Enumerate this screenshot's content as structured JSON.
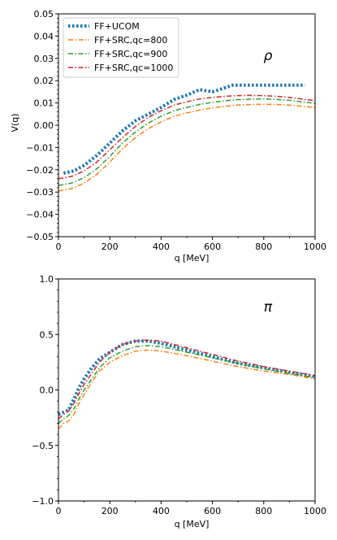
{
  "chart_data": [
    {
      "type": "line",
      "annotation": "ρ",
      "xlabel": "q [MeV]",
      "ylabel": "V(q)",
      "xlim": [
        0,
        1000
      ],
      "ylim": [
        -0.05,
        0.05
      ],
      "xticks": [
        "0",
        "200",
        "400",
        "600",
        "800",
        "1000"
      ],
      "yticks": [
        "−0.05",
        "−0.04",
        "−0.03",
        "−0.02",
        "−0.01",
        "0.00",
        "0.01",
        "0.02",
        "0.03",
        "0.04",
        "0.05"
      ],
      "legend_position": "top-left",
      "series": [
        {
          "name": "FF+UCOM",
          "color": "#1f77b4",
          "style": "dotted",
          "x": [
            20,
            60,
            100,
            150,
            200,
            250,
            300,
            350,
            400,
            450,
            500,
            550,
            600,
            640,
            680,
            720,
            760,
            800,
            850,
            900,
            960
          ],
          "y": [
            -0.0215,
            -0.0205,
            -0.018,
            -0.0135,
            -0.008,
            -0.0025,
            0.002,
            0.005,
            0.008,
            0.0115,
            0.0135,
            0.016,
            0.015,
            0.0165,
            0.018,
            0.018,
            0.018,
            0.018,
            0.018,
            0.018,
            0.018
          ]
        },
        {
          "name": "FF+SRC,qc=800",
          "color": "#ff7f0e",
          "style": "dashdot",
          "x": [
            0,
            50,
            100,
            150,
            200,
            250,
            300,
            350,
            400,
            450,
            500,
            550,
            600,
            650,
            700,
            750,
            800,
            850,
            900,
            950,
            1000
          ],
          "y": [
            -0.0295,
            -0.0285,
            -0.026,
            -0.022,
            -0.0165,
            -0.0105,
            -0.0055,
            -0.0015,
            0.0015,
            0.004,
            0.0055,
            0.0068,
            0.0078,
            0.0085,
            0.009,
            0.0093,
            0.0094,
            0.0093,
            0.009,
            0.0085,
            0.008
          ]
        },
        {
          "name": "FF+SRC,qc=900",
          "color": "#2ca02c",
          "style": "dashdot",
          "x": [
            0,
            50,
            100,
            150,
            200,
            250,
            300,
            350,
            400,
            450,
            500,
            550,
            600,
            650,
            700,
            750,
            800,
            850,
            900,
            950,
            1000
          ],
          "y": [
            -0.027,
            -0.026,
            -0.0235,
            -0.0195,
            -0.014,
            -0.008,
            -0.003,
            0.001,
            0.004,
            0.0065,
            0.008,
            0.0093,
            0.0103,
            0.011,
            0.0115,
            0.0117,
            0.0118,
            0.0116,
            0.0112,
            0.0105,
            0.0098
          ]
        },
        {
          "name": "FF+SRC,qc=1000",
          "color": "#d62728",
          "style": "dashdot",
          "x": [
            0,
            50,
            100,
            150,
            200,
            250,
            300,
            350,
            400,
            450,
            500,
            550,
            600,
            650,
            700,
            750,
            800,
            850,
            900,
            950,
            1000
          ],
          "y": [
            -0.024,
            -0.023,
            -0.0205,
            -0.0165,
            -0.011,
            -0.0055,
            -0.0005,
            0.0035,
            0.0065,
            0.009,
            0.0105,
            0.0118,
            0.0125,
            0.013,
            0.0133,
            0.0134,
            0.0133,
            0.013,
            0.0125,
            0.0118,
            0.011
          ]
        }
      ]
    },
    {
      "type": "line",
      "annotation": "π",
      "xlabel": "q [MeV]",
      "ylabel": "",
      "xlim": [
        0,
        1000
      ],
      "ylim": [
        -1.0,
        1.0
      ],
      "xticks": [
        "0",
        "200",
        "400",
        "600",
        "800",
        "1000"
      ],
      "yticks": [
        "−1.0",
        "−0.5",
        "0.0",
        "0.5",
        "1.0"
      ],
      "series": [
        {
          "name": "FF+UCOM",
          "color": "#1f77b4",
          "style": "dotted",
          "x": [
            0,
            40,
            60,
            80,
            100,
            130,
            160,
            200,
            250,
            300,
            350,
            400,
            500,
            600,
            700,
            800,
            900,
            1000
          ],
          "y": [
            -0.22,
            -0.18,
            -0.08,
            0.02,
            0.1,
            0.2,
            0.28,
            0.34,
            0.41,
            0.44,
            0.44,
            0.42,
            0.36,
            0.3,
            0.24,
            0.2,
            0.16,
            0.12
          ]
        },
        {
          "name": "FF+SRC,qc=800",
          "color": "#ff7f0e",
          "style": "dashdot",
          "x": [
            0,
            20,
            40,
            60,
            80,
            100,
            130,
            160,
            200,
            250,
            300,
            350,
            400,
            500,
            600,
            700,
            800,
            900,
            1000
          ],
          "y": [
            -0.35,
            -0.3,
            -0.28,
            -0.22,
            -0.12,
            -0.04,
            0.07,
            0.17,
            0.25,
            0.31,
            0.35,
            0.36,
            0.35,
            0.31,
            0.26,
            0.21,
            0.17,
            0.14,
            0.1
          ]
        },
        {
          "name": "FF+SRC,qc=900",
          "color": "#2ca02c",
          "style": "dashdot",
          "x": [
            0,
            20,
            40,
            60,
            80,
            100,
            130,
            160,
            200,
            250,
            300,
            350,
            400,
            500,
            600,
            700,
            800,
            900,
            1000
          ],
          "y": [
            -0.3,
            -0.26,
            -0.23,
            -0.17,
            -0.08,
            0.0,
            0.1,
            0.2,
            0.29,
            0.35,
            0.39,
            0.4,
            0.39,
            0.34,
            0.29,
            0.24,
            0.19,
            0.15,
            0.11
          ]
        },
        {
          "name": "FF+SRC,qc=1000",
          "color": "#d62728",
          "style": "dashdot",
          "x": [
            0,
            20,
            40,
            60,
            80,
            100,
            130,
            160,
            200,
            250,
            300,
            350,
            400,
            500,
            600,
            700,
            800,
            900,
            1000
          ],
          "y": [
            -0.26,
            -0.22,
            -0.19,
            -0.12,
            -0.03,
            0.05,
            0.15,
            0.25,
            0.34,
            0.41,
            0.44,
            0.45,
            0.44,
            0.38,
            0.32,
            0.26,
            0.21,
            0.17,
            0.13
          ]
        }
      ]
    }
  ]
}
